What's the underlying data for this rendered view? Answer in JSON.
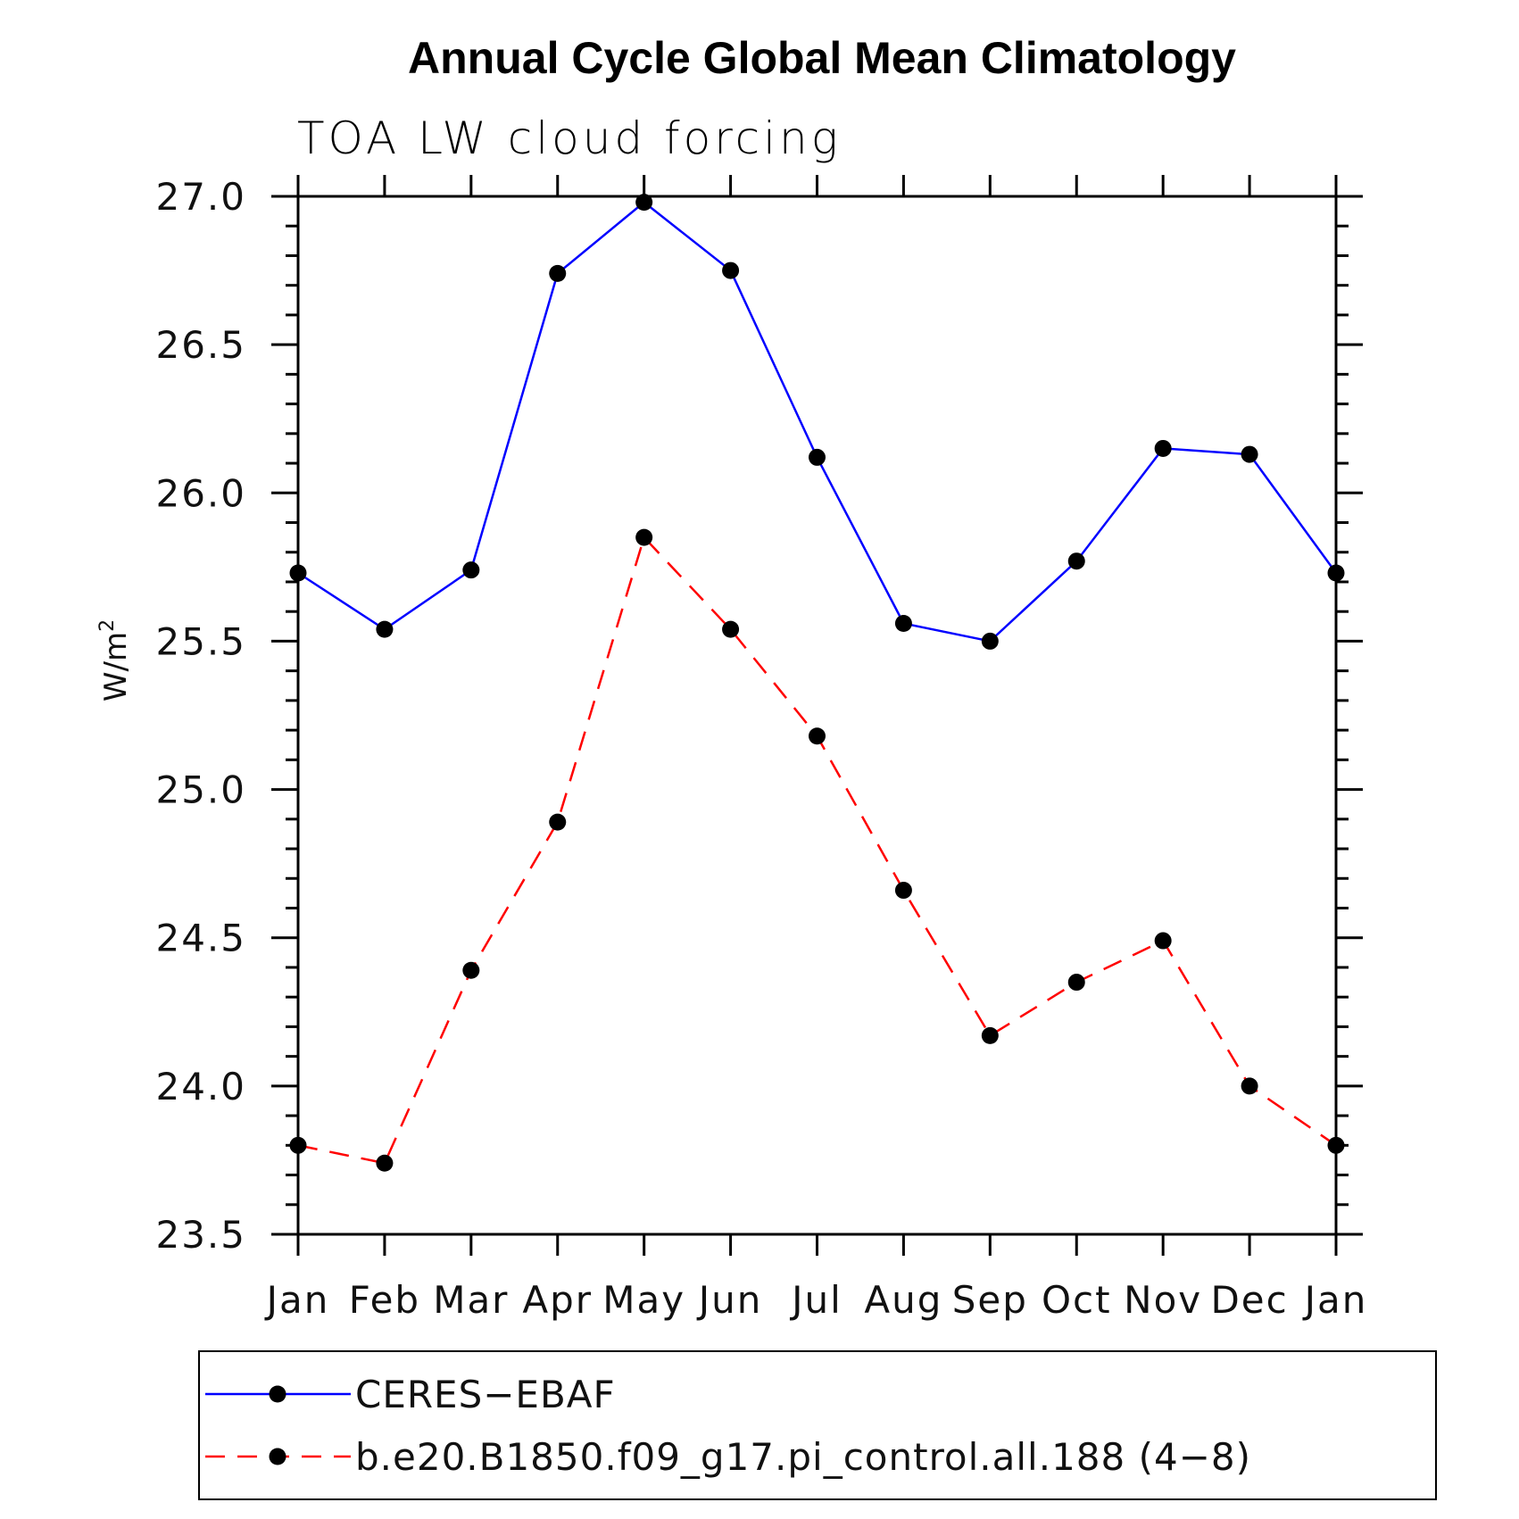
{
  "chart_data": {
    "type": "line",
    "title": "Annual Cycle Global Mean Climatology",
    "subtitle": "TOA LW cloud forcing",
    "ylabel_base": "W/m",
    "ylabel_sup": "2",
    "xlabel": "",
    "categories": [
      "Jan",
      "Feb",
      "Mar",
      "Apr",
      "May",
      "Jun",
      "Jul",
      "Aug",
      "Sep",
      "Oct",
      "Nov",
      "Dec",
      "Jan"
    ],
    "ylim": [
      23.5,
      27.0
    ],
    "yticks": [
      "23.5",
      "24.0",
      "24.5",
      "25.0",
      "25.5",
      "26.0",
      "26.5",
      "27.0"
    ],
    "series": [
      {
        "name": "CERES−EBAF",
        "color": "#0000ff",
        "style": "solid",
        "marker": "filled-circle",
        "values": [
          25.73,
          25.54,
          25.74,
          26.74,
          26.98,
          26.75,
          26.12,
          25.56,
          25.5,
          25.77,
          26.15,
          26.13,
          25.73
        ]
      },
      {
        "name": "b.e20.B1850.f09_g17.pi_control.all.188 (4−8)",
        "color": "#ff0000",
        "style": "dashed",
        "marker": "filled-circle",
        "values": [
          23.8,
          23.74,
          24.39,
          24.89,
          25.85,
          25.54,
          25.18,
          24.66,
          24.17,
          24.35,
          24.49,
          24.0,
          23.8
        ]
      }
    ],
    "legend": "bottom"
  }
}
